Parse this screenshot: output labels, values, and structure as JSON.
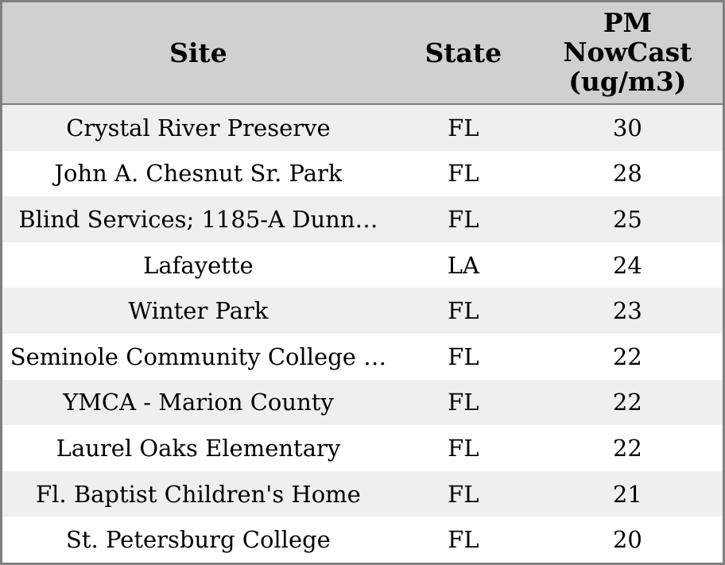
{
  "colors": {
    "border": "#7f7f7f",
    "header-bg": "#d0d0d0",
    "row-alt-bg": "#efefef",
    "row-bg": "#ffffff",
    "text": "#000000"
  },
  "table": {
    "header": {
      "site": "Site",
      "state": "State",
      "pm_lines": [
        "PM",
        "NowCast",
        "(ug/m3)"
      ]
    },
    "rows": [
      {
        "site": "Crystal River Preserve",
        "state": "FL",
        "pm": "30"
      },
      {
        "site": "John A. Chesnut Sr. Park",
        "state": "FL",
        "pm": "28"
      },
      {
        "site": "Blind Services; 1185-A Dunn…",
        "state": "FL",
        "pm": "25"
      },
      {
        "site": "Lafayette",
        "state": "LA",
        "pm": "24"
      },
      {
        "site": "Winter Park",
        "state": "FL",
        "pm": "23"
      },
      {
        "site": "Seminole Community College …",
        "state": "FL",
        "pm": "22"
      },
      {
        "site": "YMCA - Marion County",
        "state": "FL",
        "pm": "22"
      },
      {
        "site": "Laurel Oaks Elementary",
        "state": "FL",
        "pm": "22"
      },
      {
        "site": "Fl. Baptist Children's Home",
        "state": "FL",
        "pm": "21"
      },
      {
        "site": "St. Petersburg College",
        "state": "FL",
        "pm": "20"
      }
    ]
  },
  "chart_data": {
    "type": "table",
    "title": "",
    "columns": [
      "Site",
      "State",
      "PM NowCast (ug/m3)"
    ],
    "rows": [
      [
        "Crystal River Preserve",
        "FL",
        30
      ],
      [
        "John A. Chesnut Sr. Park",
        "FL",
        28
      ],
      [
        "Blind Services; 1185-A Dunn…",
        "FL",
        25
      ],
      [
        "Lafayette",
        "LA",
        24
      ],
      [
        "Winter Park",
        "FL",
        23
      ],
      [
        "Seminole Community College …",
        "FL",
        22
      ],
      [
        "YMCA - Marion County",
        "FL",
        22
      ],
      [
        "Laurel Oaks Elementary",
        "FL",
        22
      ],
      [
        "Fl. Baptist Children's Home",
        "FL",
        21
      ],
      [
        "St. Petersburg College",
        "FL",
        20
      ]
    ],
    "layout_hints": {
      "zebra_striping": true,
      "header_bg": "#d0d0d0",
      "alt_row_bg": "#efefef",
      "all_columns_center_aligned": true
    }
  }
}
